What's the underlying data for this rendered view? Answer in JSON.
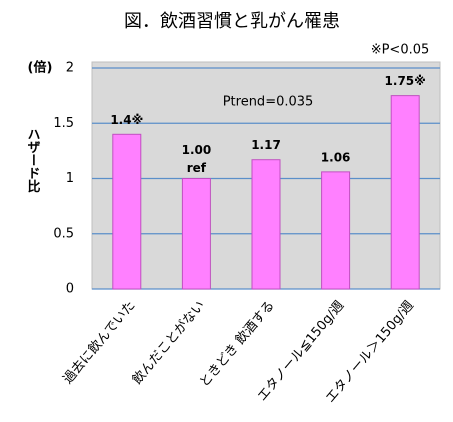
{
  "chart_data": {
    "type": "bar",
    "title": "図．飲酒習慣と乳がん罹患",
    "note": "※P<0.05",
    "annotation": "Ptrend=0.035",
    "y_unit_label": "(倍)",
    "ylabel": "ハザード比",
    "categories": [
      "過去に飲んでいた",
      "飲んだことがない",
      "ときどき 飲酒する",
      "エタノール≦150g/週",
      "エタノール＞150g/週"
    ],
    "values": [
      1.4,
      1.0,
      1.17,
      1.06,
      1.75
    ],
    "value_labels": [
      "1.4※",
      "1.00",
      "1.17",
      "1.06",
      "1.75※"
    ],
    "reference_label": {
      "index": 1,
      "text": "ref"
    },
    "color": "#ff80ff",
    "ylim": [
      0,
      2
    ],
    "yticks": [
      0,
      0.5,
      1,
      1.5,
      2
    ],
    "grid": true
  }
}
